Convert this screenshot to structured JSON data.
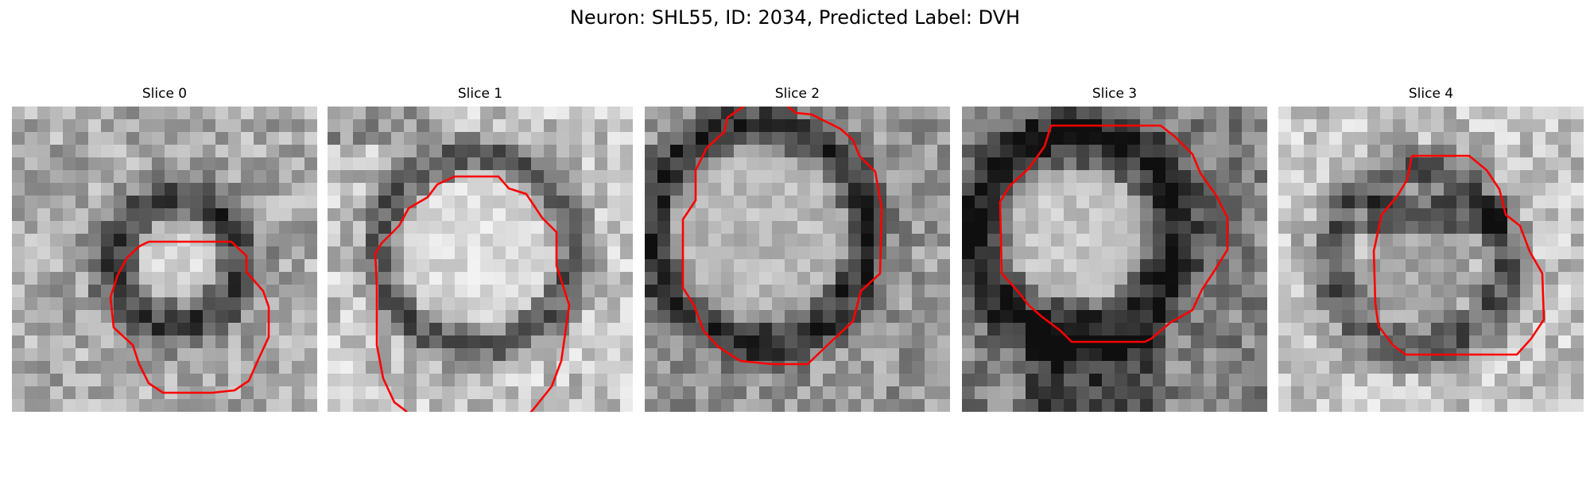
{
  "figure": {
    "title": "Neuron: SHL55, ID: 2034, Predicted Label: DVH"
  },
  "panels": [
    {
      "title": "Slice 0"
    },
    {
      "title": "Slice 1"
    },
    {
      "title": "Slice 2"
    },
    {
      "title": "Slice 3"
    },
    {
      "title": "Slice 4"
    }
  ],
  "colors": {
    "contour": "#ff0000",
    "colormap": "grayscale"
  }
}
